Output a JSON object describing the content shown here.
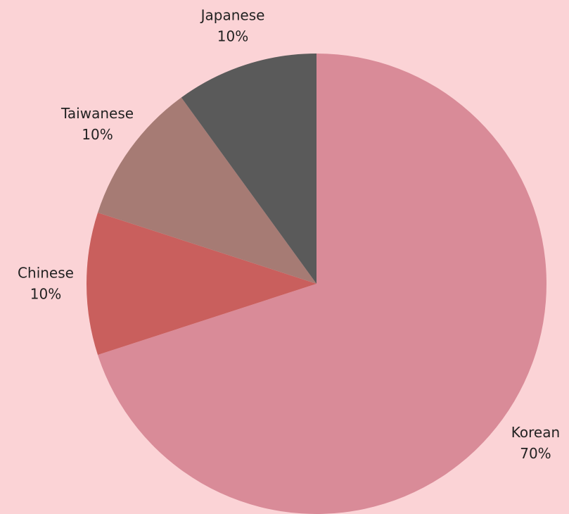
{
  "chart_data": {
    "type": "pie",
    "categories": [
      "Korean",
      "Chinese",
      "Taiwanese",
      "Japanese"
    ],
    "values": [
      70,
      10,
      10,
      10
    ],
    "value_labels": [
      "70%",
      "10%",
      "10%",
      "10%"
    ],
    "colors": [
      "#d98b98",
      "#c95f5d",
      "#a67b74",
      "#5a5a5a"
    ],
    "start_angle": 0,
    "direction": "clockwise"
  }
}
